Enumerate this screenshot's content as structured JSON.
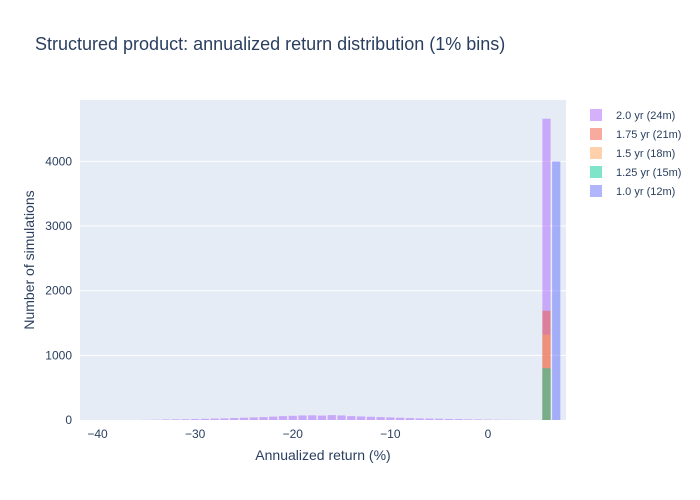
{
  "chart_data": {
    "type": "bar",
    "mode": "overlay",
    "title": "Structured product: annualized return distribution (1% bins)",
    "xlabel": "Annualized return (%)",
    "ylabel": "Number of simulations",
    "xlim": [
      -41.8,
      8.0
    ],
    "ylim": [
      0,
      4950
    ],
    "xticks": [
      -40,
      -30,
      -20,
      -10,
      0
    ],
    "yticks": [
      0,
      1000,
      2000,
      3000,
      4000
    ],
    "bin_width": 1,
    "grid": true,
    "legend_position": "top-right",
    "series": [
      {
        "name": "2.0 yr (24m)",
        "color": "#ab63fa",
        "x": [
          -35,
          -34,
          -33,
          -32,
          -31,
          -30,
          -29,
          -28,
          -27,
          -26,
          -25,
          -24,
          -23,
          -22,
          -21,
          -20,
          -19,
          -18,
          -17,
          -16,
          -15,
          -14,
          -13,
          -12,
          -11,
          -10,
          -9,
          -8,
          -7,
          -6,
          -5,
          -4,
          -3,
          -2,
          -1,
          0,
          1,
          2,
          3,
          4,
          6
        ],
        "values": [
          2,
          4,
          8,
          10,
          12,
          15,
          18,
          22,
          25,
          30,
          35,
          40,
          45,
          52,
          60,
          65,
          70,
          72,
          68,
          75,
          70,
          60,
          55,
          50,
          45,
          40,
          35,
          30,
          25,
          22,
          20,
          16,
          14,
          10,
          8,
          6,
          4,
          3,
          2,
          1,
          4660
        ]
      },
      {
        "name": "1.75 yr (21m)",
        "color": "#ef553b",
        "x": [
          6
        ],
        "values": [
          1690
        ]
      },
      {
        "name": "1.5 yr (18m)",
        "color": "#ffa15a",
        "x": [
          6
        ],
        "values": [
          1320
        ]
      },
      {
        "name": "1.25 yr (15m)",
        "color": "#00cc96",
        "x": [
          6
        ],
        "values": [
          800
        ]
      },
      {
        "name": "1.0 yr (12m)",
        "color": "#636efa",
        "x": [
          7
        ],
        "values": [
          4000
        ]
      }
    ]
  }
}
